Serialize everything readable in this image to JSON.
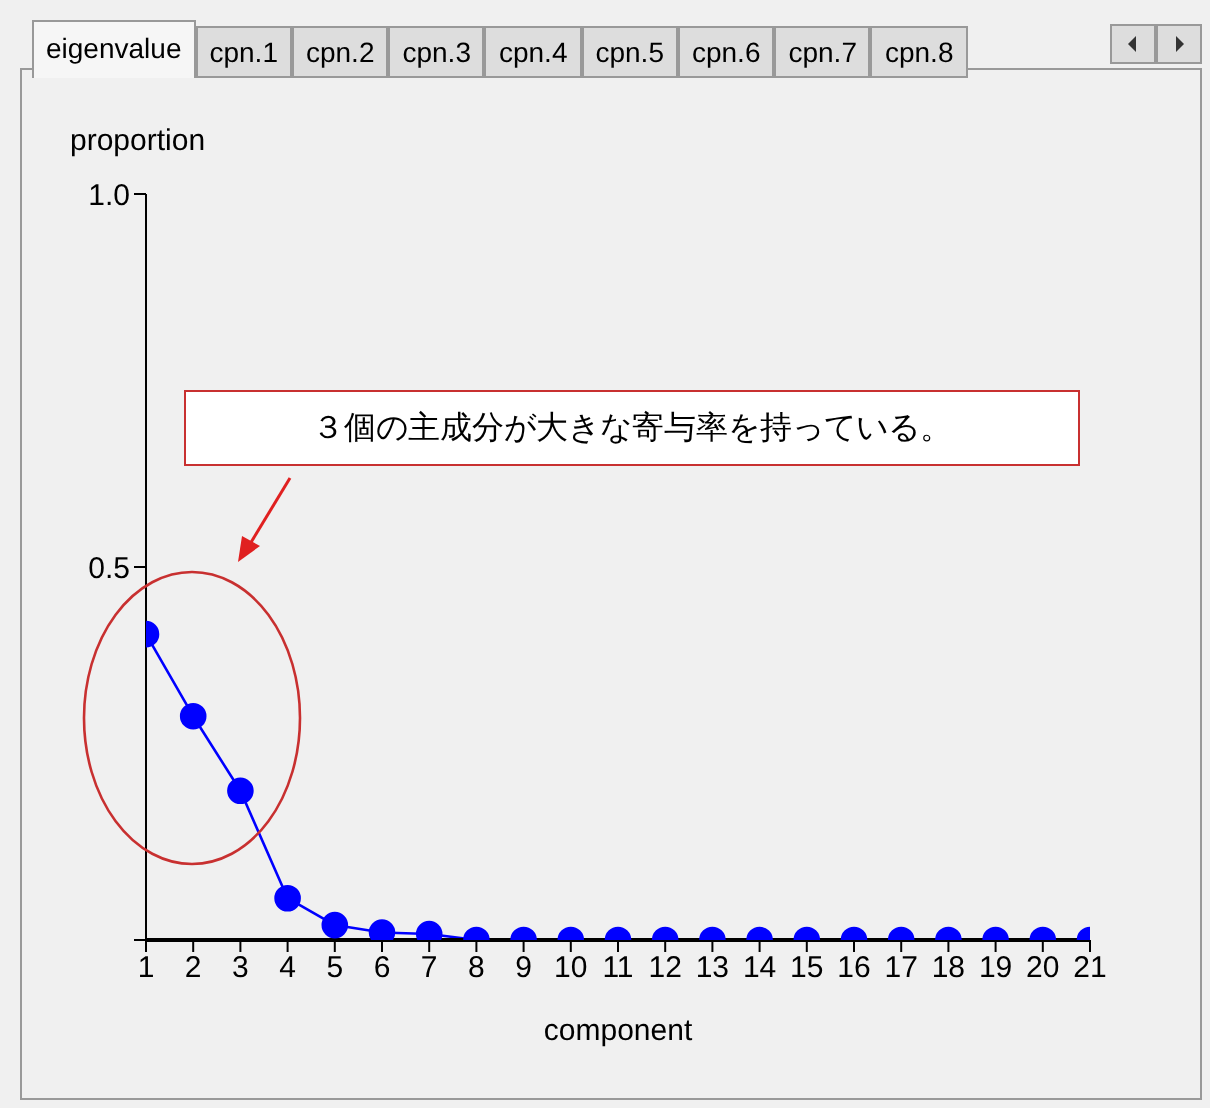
{
  "chart_data": {
    "type": "line",
    "xlabel": "component",
    "ylabel": "proportion",
    "annotations": [
      "eigenvalue",
      "cpn.1",
      "cpn.2",
      "cpn.3",
      "cpn.4",
      "cpn.5",
      "cpn.6",
      "cpn.7",
      "cpn.8",
      "３個の主成分が大きな寄与率を持っている。"
    ],
    "x": [
      1,
      2,
      3,
      4,
      5,
      6,
      7,
      8,
      9,
      10,
      11,
      12,
      13,
      14,
      15,
      16,
      17,
      18,
      19,
      20,
      21
    ],
    "series": [
      {
        "color": "#0000ff",
        "values": [
          0.41,
          0.3,
          0.2,
          0.056,
          0.02,
          0.01,
          0.008,
          0,
          0,
          0,
          0,
          0,
          0,
          0,
          0,
          0,
          0,
          0,
          0,
          0,
          0
        ]
      }
    ],
    "xlim": [
      1,
      21
    ],
    "xticks": [
      1,
      2,
      3,
      4,
      5,
      6,
      7,
      8,
      9,
      10,
      11,
      12,
      13,
      14,
      15,
      16,
      17,
      18,
      19,
      20,
      21
    ],
    "ylim": [
      0,
      1
    ],
    "yticks": [
      {
        "value": 0,
        "label": null
      },
      0.5,
      {
        "value": 1,
        "label": "1.0"
      }
    ],
    "grid": false,
    "legend": false,
    "marker": "circle",
    "line_style": "solid"
  }
}
